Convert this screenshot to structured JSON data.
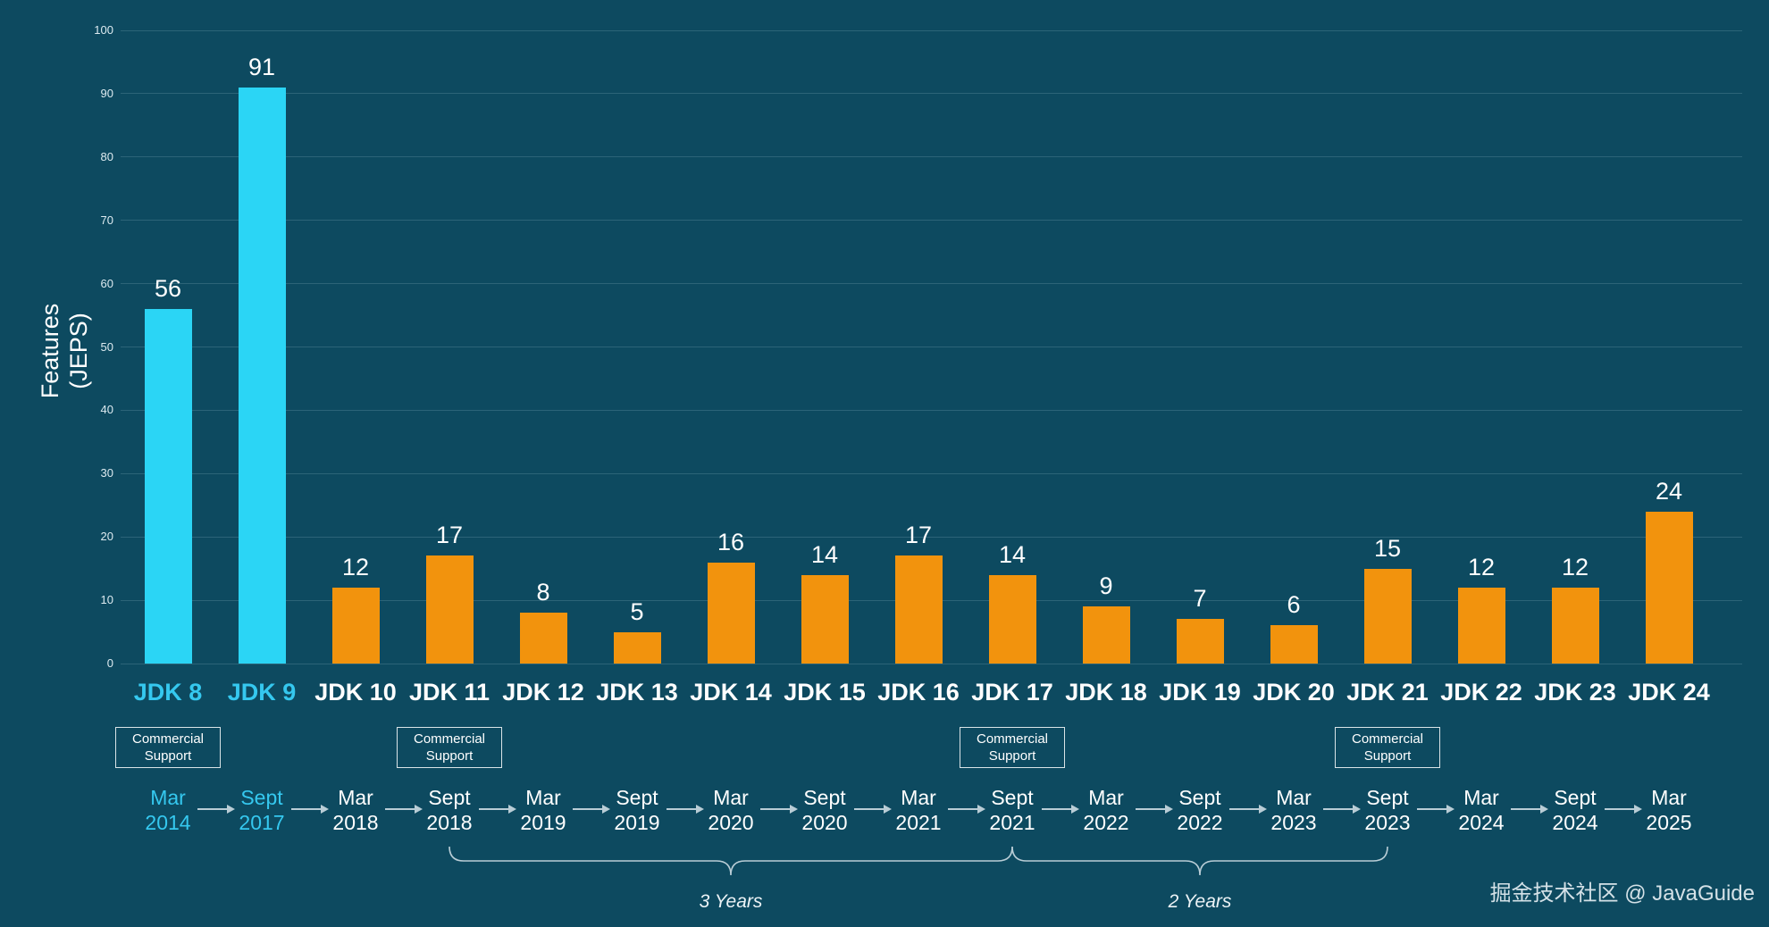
{
  "watermark": "掘金技术社区 @ JavaGuide",
  "colors": {
    "background": "#0d4a60",
    "bar_cyan": "#2bd5f5",
    "bar_orange": "#f2930d",
    "grid": "#2c6478",
    "text": "#ffffff",
    "accent_cyan": "#35c8ef",
    "muted": "#b9cdd6"
  },
  "chart_data": {
    "type": "bar",
    "title": "",
    "ylabel_line1": "Features",
    "ylabel_line2": "(JEPS)",
    "xlabel": "",
    "ylim": [
      0,
      100
    ],
    "ytick_step": 10,
    "grid": true,
    "legend": "none",
    "categories": [
      "JDK 8",
      "JDK 9",
      "JDK 10",
      "JDK 11",
      "JDK 12",
      "JDK 13",
      "JDK 14",
      "JDK 15",
      "JDK 16",
      "JDK 17",
      "JDK 18",
      "JDK 19",
      "JDK 20",
      "JDK 21",
      "JDK 22",
      "JDK 23",
      "JDK 24"
    ],
    "values": [
      56,
      91,
      12,
      17,
      8,
      5,
      16,
      14,
      17,
      14,
      9,
      7,
      6,
      15,
      12,
      12,
      24
    ],
    "highlighted_bars": [
      0,
      1
    ],
    "release_dates": [
      {
        "month": "Mar",
        "year": "2014"
      },
      {
        "month": "Sept",
        "year": "2017"
      },
      {
        "month": "Mar",
        "year": "2018"
      },
      {
        "month": "Sept",
        "year": "2018"
      },
      {
        "month": "Mar",
        "year": "2019"
      },
      {
        "month": "Sept",
        "year": "2019"
      },
      {
        "month": "Mar",
        "year": "2020"
      },
      {
        "month": "Sept",
        "year": "2020"
      },
      {
        "month": "Mar",
        "year": "2021"
      },
      {
        "month": "Sept",
        "year": "2021"
      },
      {
        "month": "Mar",
        "year": "2022"
      },
      {
        "month": "Sept",
        "year": "2022"
      },
      {
        "month": "Mar",
        "year": "2023"
      },
      {
        "month": "Sept",
        "year": "2023"
      },
      {
        "month": "Mar",
        "year": "2024"
      },
      {
        "month": "Sept",
        "year": "2024"
      },
      {
        "month": "Mar",
        "year": "2025"
      }
    ],
    "commercial_support": {
      "line1": "Commercial",
      "line2": "Support",
      "indices": [
        0,
        3,
        9,
        13
      ]
    },
    "braces": [
      {
        "label": "3 Years",
        "from": 3,
        "to": 9
      },
      {
        "label": "2 Years",
        "from": 9,
        "to": 13
      }
    ]
  }
}
